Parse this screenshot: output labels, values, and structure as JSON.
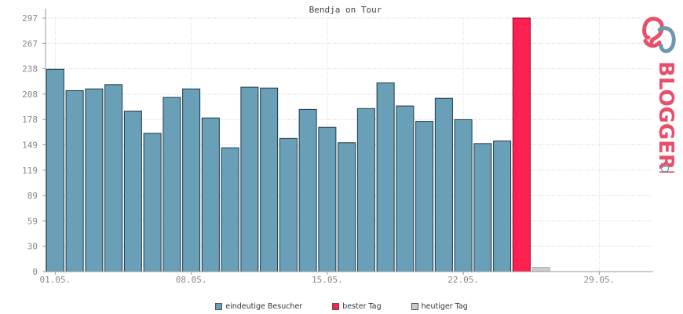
{
  "chart_data": {
    "type": "bar",
    "title": "Bendja on Tour",
    "ylim": [
      0,
      297
    ],
    "yticks": [
      "0",
      "30",
      "59",
      "89",
      "119",
      "149",
      "178",
      "208",
      "238",
      "267",
      "297"
    ],
    "xticks": [
      {
        "index": 0,
        "label": "01.05."
      },
      {
        "index": 7,
        "label": "08.05."
      },
      {
        "index": 14,
        "label": "15.05."
      },
      {
        "index": 21,
        "label": "22.05."
      },
      {
        "index": 28,
        "label": "29.05."
      }
    ],
    "grid": true,
    "legend_position": "bottom",
    "n_slots": 31,
    "series": [
      {
        "name": "eindeutige Besucher",
        "color": "#6a9fb8",
        "values": [
          237,
          212,
          214,
          219,
          188,
          162,
          204,
          214,
          180,
          145,
          216,
          215,
          156,
          190,
          169,
          151,
          191,
          221,
          194,
          176,
          203,
          178,
          150,
          153,
          null,
          null,
          null,
          null,
          null,
          null,
          null
        ]
      },
      {
        "name": "bester Tag",
        "color": "#ff2052",
        "values": [
          null,
          null,
          null,
          null,
          null,
          null,
          null,
          null,
          null,
          null,
          null,
          null,
          null,
          null,
          null,
          null,
          null,
          null,
          null,
          null,
          null,
          null,
          null,
          null,
          297,
          null,
          null,
          null,
          null,
          null,
          null
        ]
      },
      {
        "name": "heutiger Tag",
        "color": "#cccccc",
        "values": [
          null,
          null,
          null,
          null,
          null,
          null,
          null,
          null,
          null,
          null,
          null,
          null,
          null,
          null,
          null,
          null,
          null,
          null,
          null,
          null,
          null,
          null,
          null,
          null,
          null,
          5,
          null,
          null,
          null,
          null,
          null
        ]
      }
    ]
  },
  "logo": {
    "text": "BLOGGEREI",
    "suffix": ".DE"
  }
}
